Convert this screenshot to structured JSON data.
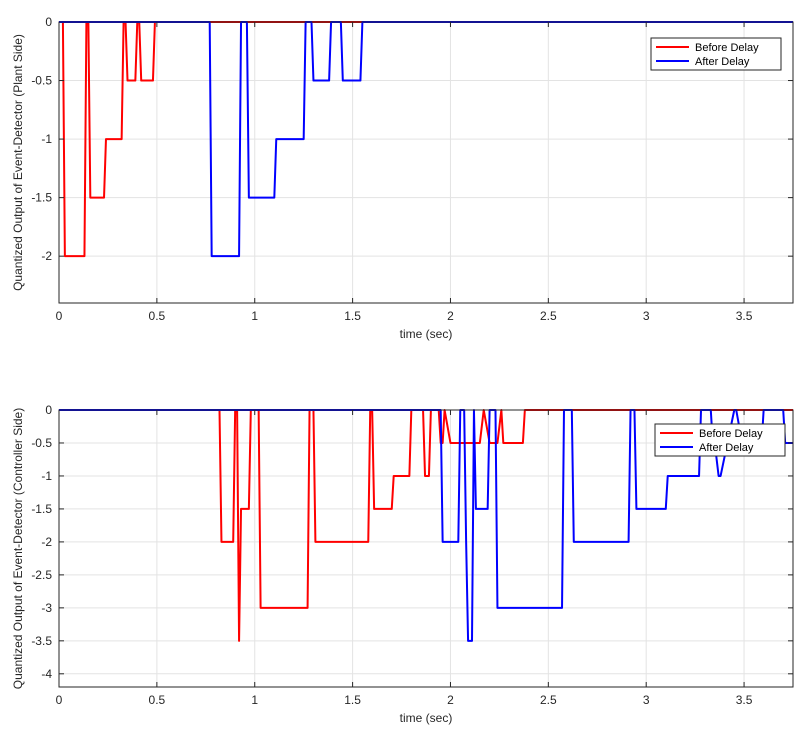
{
  "chart_data": [
    {
      "type": "line",
      "title": "",
      "xlabel": "time (sec)",
      "ylabel": "Quantized Output of Event-Detector (Plant Side)",
      "xlim": [
        0,
        3.75
      ],
      "ylim": [
        -2.4,
        0
      ],
      "xticks": [
        0,
        0.5,
        1,
        1.5,
        2,
        2.5,
        3,
        3.5
      ],
      "xtick_labels": [
        "0",
        "0.5",
        "1",
        "1.5",
        "2",
        "2.5",
        "3",
        "3.5"
      ],
      "yticks": [
        0,
        -0.5,
        -1,
        -1.5,
        -2
      ],
      "ytick_labels": [
        "0",
        "-0.5",
        "-1",
        "-1.5",
        "-2"
      ],
      "grid": true,
      "legend_position": "top-right",
      "series": [
        {
          "name": "Before Delay",
          "color": "#ff0000",
          "x": [
            0,
            0.02,
            0.03,
            0.13,
            0.14,
            0.15,
            0.16,
            0.23,
            0.24,
            0.32,
            0.33,
            0.34,
            0.35,
            0.39,
            0.4,
            0.41,
            0.42,
            0.44,
            0.45,
            0.48,
            0.49,
            0.5,
            3.75
          ],
          "y": [
            0,
            0,
            -2,
            -2,
            0,
            0,
            -1.5,
            -1.5,
            -1,
            -1,
            0,
            0,
            -0.5,
            -0.5,
            0,
            0,
            -0.5,
            -0.5,
            -0.5,
            -0.5,
            0,
            0,
            0
          ]
        },
        {
          "name": "After Delay",
          "color": "#0000ff",
          "x": [
            0,
            0.77,
            0.78,
            0.92,
            0.93,
            0.96,
            0.97,
            1.1,
            1.11,
            1.25,
            1.26,
            1.29,
            1.3,
            1.38,
            1.39,
            1.41,
            1.44,
            1.45,
            1.54,
            1.55,
            1.56,
            3.75
          ],
          "y": [
            0,
            0,
            -2,
            -2,
            0,
            0,
            -1.5,
            -1.5,
            -1,
            -1,
            0,
            0,
            -0.5,
            -0.5,
            0,
            0,
            0,
            -0.5,
            -0.5,
            0,
            0,
            0
          ]
        }
      ]
    },
    {
      "type": "line",
      "title": "",
      "xlabel": "time (sec)",
      "ylabel": "Quantized Output of Event-Detector (Controller Side)",
      "xlim": [
        0,
        3.75
      ],
      "ylim": [
        -4.2,
        0
      ],
      "xticks": [
        0,
        0.5,
        1,
        1.5,
        2,
        2.5,
        3,
        3.5
      ],
      "xtick_labels": [
        "0",
        "0.5",
        "1",
        "1.5",
        "2",
        "2.5",
        "3",
        "3.5"
      ],
      "yticks": [
        0,
        -0.5,
        -1,
        -1.5,
        -2,
        -2.5,
        -3,
        -3.5,
        -4
      ],
      "ytick_labels": [
        "0",
        "-0.5",
        "-1",
        "-1.5",
        "-2",
        "-2.5",
        "-3",
        "-3.5",
        "-4"
      ],
      "grid": true,
      "legend_position": "top-right",
      "series": [
        {
          "name": "Before Delay",
          "color": "#ff0000",
          "x": [
            0,
            0.82,
            0.83,
            0.89,
            0.9,
            0.91,
            0.92,
            0.93,
            0.94,
            0.97,
            0.98,
            0.99,
            1.0,
            1.02,
            1.03,
            1.27,
            1.28,
            1.3,
            1.31,
            1.58,
            1.59,
            1.6,
            1.61,
            1.7,
            1.71,
            1.79,
            1.8,
            1.81,
            1.82,
            1.86,
            1.87,
            1.89,
            1.9,
            1.92,
            1.93,
            1.94,
            1.95,
            1.96,
            1.97,
            2.0,
            2.02,
            2.1,
            2.15,
            2.17,
            2.2,
            2.24,
            2.26,
            2.27,
            2.28,
            2.37,
            2.38,
            2.4,
            3.75
          ],
          "y": [
            0,
            0,
            -2,
            -2,
            0,
            0,
            -3.5,
            -1.5,
            -1.5,
            -1.5,
            0,
            0,
            0,
            0,
            -3,
            -3,
            0,
            0,
            -2,
            -2,
            0,
            0,
            -1.5,
            -1.5,
            -1,
            -1,
            0,
            0,
            0,
            0,
            -1,
            -1,
            0,
            0,
            0,
            0,
            -0.5,
            -0.5,
            0,
            -0.5,
            -0.5,
            -0.5,
            -0.5,
            0,
            -0.5,
            -0.5,
            0,
            -0.5,
            -0.5,
            -0.5,
            0,
            0,
            0
          ]
        },
        {
          "name": "After Delay",
          "color": "#0000ff",
          "x": [
            0,
            1.95,
            1.96,
            2.04,
            2.05,
            2.07,
            2.08,
            2.09,
            2.11,
            2.12,
            2.13,
            2.19,
            2.2,
            2.23,
            2.24,
            2.26,
            2.27,
            2.28,
            2.57,
            2.58,
            2.62,
            2.63,
            2.91,
            2.92,
            2.94,
            2.95,
            3.1,
            3.11,
            3.27,
            3.28,
            3.33,
            3.34,
            3.35,
            3.37,
            3.38,
            3.45,
            3.46,
            3.49,
            3.5,
            3.59,
            3.6,
            3.7,
            3.71,
            3.73,
            3.74,
            3.75
          ],
          "y": [
            0,
            0,
            -2,
            -2,
            0,
            0,
            -2,
            -3.5,
            -3.5,
            0,
            -1.5,
            -1.5,
            0,
            0,
            -3,
            -3,
            -3,
            -3,
            -3,
            0,
            0,
            -2,
            -2,
            0,
            0,
            -1.5,
            -1.5,
            -1,
            -1,
            0,
            0,
            -0.5,
            -0.5,
            -1,
            -1,
            0,
            0,
            -0.5,
            -0.5,
            -0.5,
            0,
            0,
            -0.5,
            -0.5,
            -0.5,
            -0.5
          ]
        }
      ]
    }
  ]
}
